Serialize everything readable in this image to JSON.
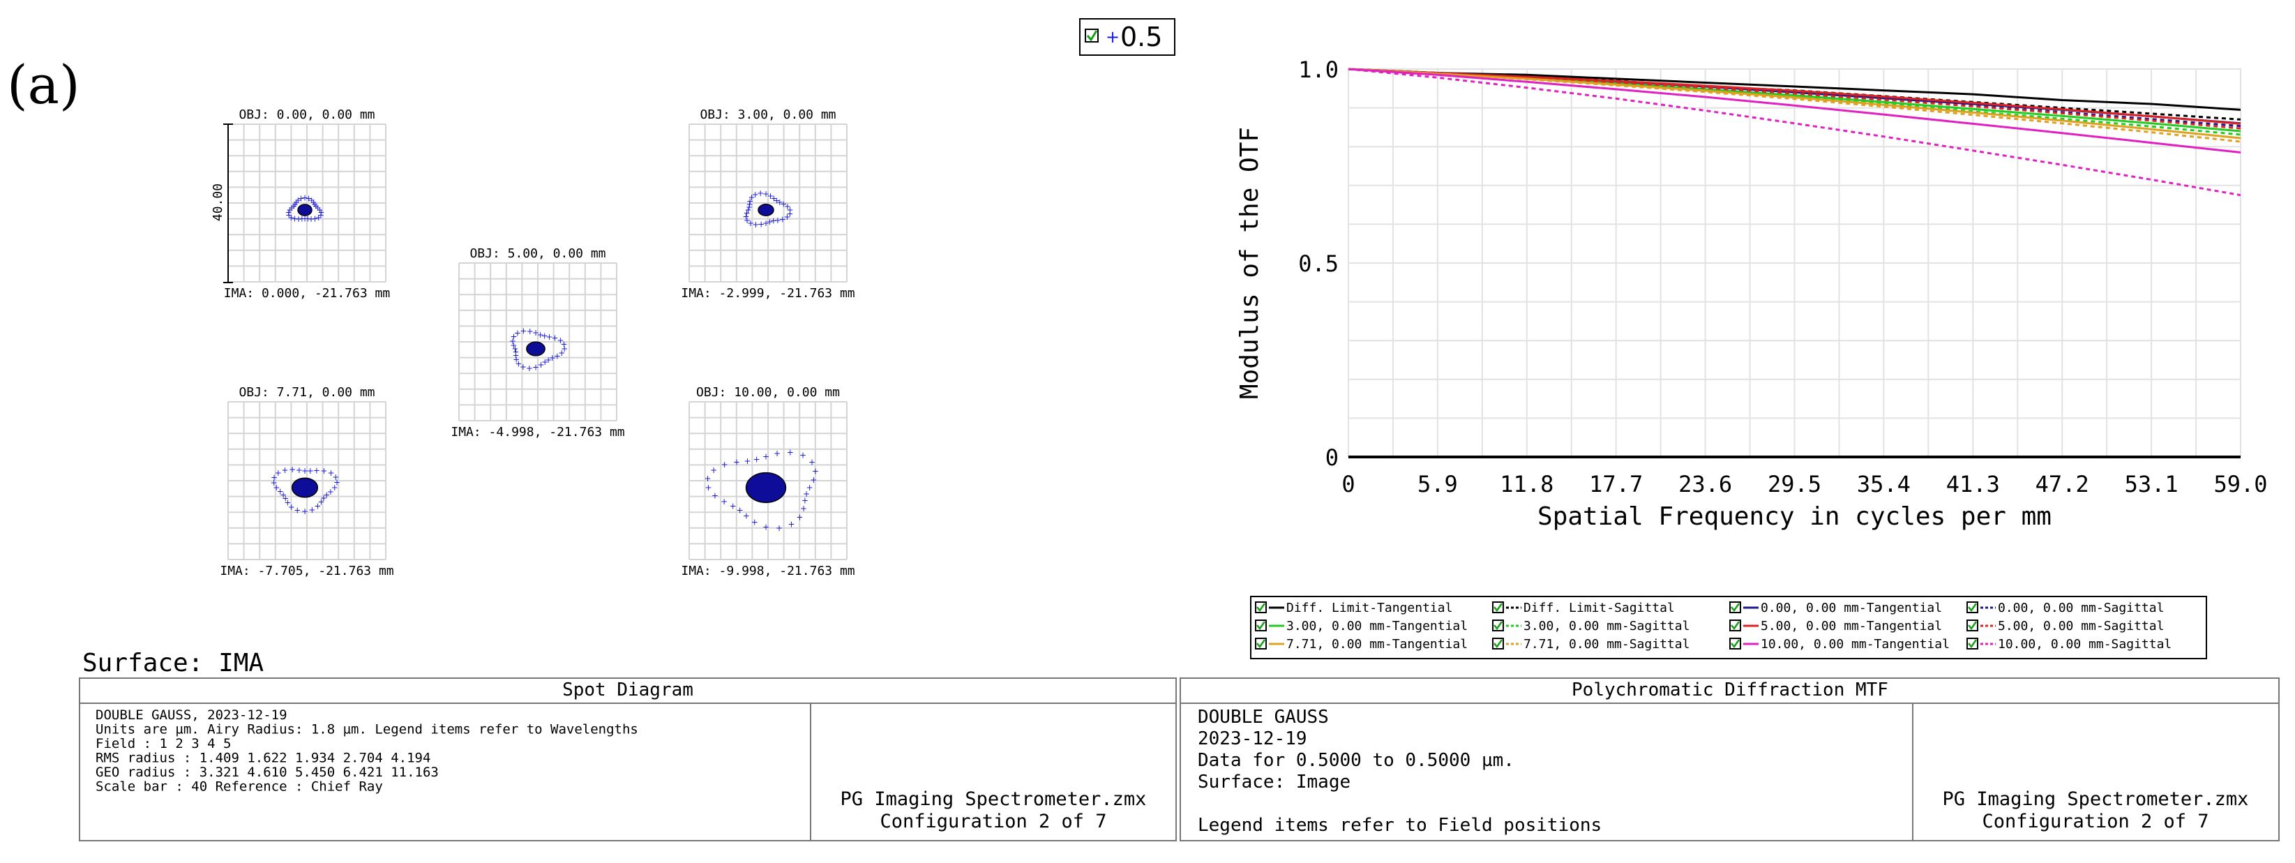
{
  "panel_label": "(a)",
  "wavelength_legend": {
    "value": "0.5",
    "color": "#1a1adc"
  },
  "surface_label": "Surface: IMA",
  "spot_diagram": {
    "scale_bar_label": "40.00",
    "boxes": [
      {
        "obj": "OBJ: 0.00, 0.00 mm",
        "ima": "IMA: 0.000, -21.763 mm",
        "rms": 1.409,
        "geo": 3.321
      },
      {
        "obj": "OBJ: 3.00, 0.00 mm",
        "ima": "IMA: -2.999, -21.763 mm",
        "rms": 1.622,
        "geo": 4.61
      },
      {
        "obj": "OBJ: 5.00, 0.00 mm",
        "ima": "IMA: -4.998, -21.763 mm",
        "rms": 1.934,
        "geo": 5.45
      },
      {
        "obj": "OBJ: 7.71, 0.00 mm",
        "ima": "IMA: -7.705, -21.763 mm",
        "rms": 2.704,
        "geo": 6.421
      },
      {
        "obj": "OBJ: 10.00, 0.00 mm",
        "ima": "IMA: -9.998, -21.763 mm",
        "rms": 4.194,
        "geo": 11.163
      }
    ]
  },
  "chart_data": {
    "type": "line",
    "xlabel": "Spatial Frequency in cycles per mm",
    "ylabel": "Modulus of the OTF",
    "xlim": [
      0,
      59.0
    ],
    "ylim": [
      0,
      1.0
    ],
    "x_ticks": [
      "0",
      "5.9",
      "11.8",
      "17.7",
      "23.6",
      "29.5",
      "35.4",
      "41.3",
      "47.2",
      "53.1",
      "59.0"
    ],
    "y_ticks": [
      "0",
      "0.5",
      "1.0"
    ],
    "grid": true,
    "x": [
      0,
      5.9,
      11.8,
      17.7,
      23.6,
      29.5,
      35.4,
      41.3,
      47.2,
      53.1,
      59.0
    ],
    "series": [
      {
        "name": "Diff. Limit-Tangential",
        "color": "#000000",
        "dashed": false,
        "values": [
          1.0,
          0.99,
          0.985,
          0.975,
          0.965,
          0.955,
          0.945,
          0.935,
          0.92,
          0.91,
          0.895
        ]
      },
      {
        "name": "Diff. Limit-Sagittal",
        "color": "#000000",
        "dashed": true,
        "values": [
          1.0,
          0.99,
          0.98,
          0.97,
          0.955,
          0.945,
          0.93,
          0.915,
          0.9,
          0.885,
          0.87
        ]
      },
      {
        "name": "0.00, 0.00 mm-Tangential",
        "color": "#1a1a8c",
        "dashed": false,
        "values": [
          1.0,
          0.99,
          0.98,
          0.968,
          0.955,
          0.94,
          0.925,
          0.91,
          0.895,
          0.878,
          0.86
        ]
      },
      {
        "name": "0.00, 0.00 mm-Sagittal",
        "color": "#1a1a8c",
        "dashed": true,
        "values": [
          1.0,
          0.99,
          0.979,
          0.966,
          0.952,
          0.937,
          0.921,
          0.905,
          0.889,
          0.871,
          0.853
        ]
      },
      {
        "name": "3.00, 0.00 mm-Tangential",
        "color": "#22cc22",
        "dashed": false,
        "values": [
          1.0,
          0.989,
          0.977,
          0.963,
          0.948,
          0.932,
          0.915,
          0.897,
          0.879,
          0.86,
          0.84
        ]
      },
      {
        "name": "3.00, 0.00 mm-Sagittal",
        "color": "#22cc22",
        "dashed": true,
        "values": [
          1.0,
          0.989,
          0.976,
          0.961,
          0.945,
          0.928,
          0.91,
          0.891,
          0.872,
          0.852,
          0.831
        ]
      },
      {
        "name": "5.00, 0.00 mm-Tangential",
        "color": "#dd2222",
        "dashed": false,
        "values": [
          1.0,
          0.99,
          0.98,
          0.969,
          0.957,
          0.944,
          0.929,
          0.913,
          0.896,
          0.878,
          0.859
        ]
      },
      {
        "name": "5.00, 0.00 mm-Sagittal",
        "color": "#dd2222",
        "dashed": true,
        "values": [
          1.0,
          0.989,
          0.978,
          0.966,
          0.952,
          0.937,
          0.921,
          0.904,
          0.886,
          0.867,
          0.847
        ]
      },
      {
        "name": "7.71, 0.00 mm-Tangential",
        "color": "#e0a020",
        "dashed": false,
        "values": [
          1.0,
          0.988,
          0.975,
          0.96,
          0.944,
          0.927,
          0.908,
          0.888,
          0.867,
          0.845,
          0.822
        ]
      },
      {
        "name": "7.71, 0.00 mm-Sagittal",
        "color": "#e0a020",
        "dashed": true,
        "values": [
          1.0,
          0.988,
          0.974,
          0.958,
          0.941,
          0.923,
          0.903,
          0.882,
          0.86,
          0.837,
          0.813
        ]
      },
      {
        "name": "10.00, 0.00 mm-Tangential",
        "color": "#e020c0",
        "dashed": false,
        "values": [
          1.0,
          0.985,
          0.967,
          0.948,
          0.928,
          0.906,
          0.883,
          0.859,
          0.835,
          0.81,
          0.785
        ]
      },
      {
        "name": "10.00, 0.00 mm-Sagittal",
        "color": "#e020c0",
        "dashed": true,
        "values": [
          1.0,
          0.978,
          0.952,
          0.924,
          0.893,
          0.86,
          0.826,
          0.79,
          0.753,
          0.715,
          0.675
        ]
      }
    ]
  },
  "spot_info": {
    "title": "Spot Diagram",
    "lines": [
      "DOUBLE GAUSS, 2023-12-19",
      "Units are µm.       Airy Radius: 1.8 µm. Legend items refer to Wavelengths",
      "Field       :       1        2        3        4        5",
      "RMS radius :    1.409    1.622    1.934    2.704    4.194",
      "GEO radius :    3.321    4.610    5.450    6.421    11.163",
      "Scale bar  : 40      Reference  : Chief Ray"
    ],
    "file": "PG Imaging Spectrometer.zmx",
    "config": "Configuration 2 of 7"
  },
  "mtf_info": {
    "title": "Polychromatic Diffraction MTF",
    "lines": [
      "DOUBLE GAUSS",
      "2023-12-19",
      "Data for 0.5000 to 0.5000 µm.",
      "Surface: Image",
      "",
      "Legend items refer to Field positions"
    ],
    "file": "PG Imaging Spectrometer.zmx",
    "config": "Configuration 2 of 7"
  }
}
